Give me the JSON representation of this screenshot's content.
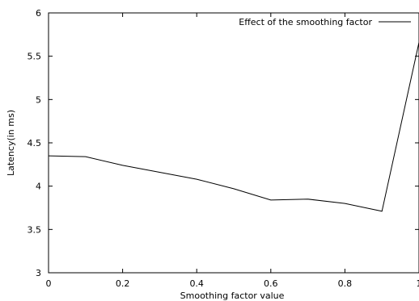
{
  "chart_data": {
    "type": "line",
    "xlabel": "Smoothing factor value",
    "ylabel": "Latency(in ms)",
    "xlim": [
      0,
      1
    ],
    "ylim": [
      3,
      6
    ],
    "xticks": [
      0,
      0.2,
      0.4,
      0.6,
      0.8,
      1
    ],
    "xtick_labels": [
      "0",
      "0.2",
      "0.4",
      "0.6",
      "0.8",
      "1"
    ],
    "yticks": [
      3,
      3.5,
      4,
      4.5,
      5,
      5.5,
      6
    ],
    "ytick_labels": [
      "3",
      "3.5",
      "4",
      "4.5",
      "5",
      "5.5",
      "6"
    ],
    "grid": false,
    "legend_position": "top-right",
    "series": [
      {
        "name": "Effect of the smoothing factor",
        "color": "#000000",
        "x": [
          0,
          0.1,
          0.2,
          0.3,
          0.4,
          0.5,
          0.6,
          0.7,
          0.8,
          0.9,
          1.0
        ],
        "y": [
          4.35,
          4.34,
          4.24,
          4.16,
          4.08,
          3.97,
          3.84,
          3.85,
          3.8,
          3.71,
          5.66
        ]
      }
    ]
  }
}
